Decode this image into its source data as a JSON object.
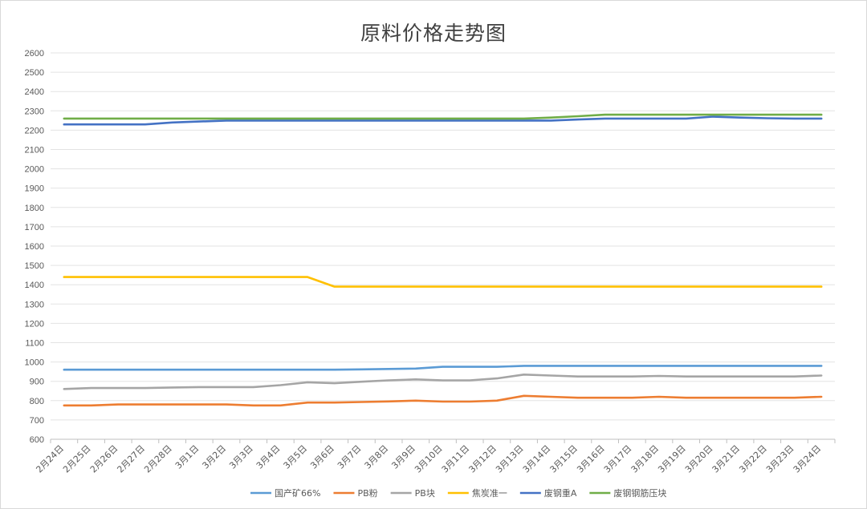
{
  "chart_data": {
    "type": "line",
    "title": "原料价格走势图",
    "xlabel": "",
    "ylabel": "",
    "ylim": [
      600,
      2600
    ],
    "ystep": 100,
    "grid": true,
    "legend_position": "bottom",
    "categories": [
      "2月24日",
      "2月25日",
      "2月26日",
      "2月27日",
      "2月28日",
      "3月1日",
      "3月2日",
      "3月3日",
      "3月4日",
      "3月5日",
      "3月6日",
      "3月7日",
      "3月8日",
      "3月9日",
      "3月10日",
      "3月11日",
      "3月12日",
      "3月13日",
      "3月14日",
      "3月15日",
      "3月16日",
      "3月17日",
      "3月18日",
      "3月19日",
      "3月20日",
      "3月21日",
      "3月22日",
      "3月23日",
      "3月24日"
    ],
    "series": [
      {
        "name": "国产矿66%",
        "color": "#5b9bd5",
        "values": [
          960,
          960,
          960,
          960,
          960,
          960,
          960,
          960,
          960,
          960,
          960,
          962,
          964,
          966,
          975,
          975,
          975,
          980,
          980,
          980,
          980,
          980,
          980,
          980,
          980,
          980,
          980,
          980,
          980
        ]
      },
      {
        "name": "PB粉",
        "color": "#ed7d31",
        "values": [
          775,
          775,
          780,
          780,
          780,
          780,
          780,
          775,
          775,
          790,
          790,
          793,
          796,
          800,
          795,
          795,
          800,
          825,
          820,
          815,
          815,
          815,
          820,
          815,
          815,
          815,
          815,
          815,
          820
        ]
      },
      {
        "name": "PB块",
        "color": "#a5a5a5",
        "values": [
          860,
          865,
          865,
          865,
          868,
          870,
          870,
          870,
          880,
          895,
          890,
          898,
          905,
          910,
          905,
          905,
          915,
          935,
          930,
          925,
          925,
          925,
          928,
          925,
          925,
          925,
          925,
          925,
          930
        ]
      },
      {
        "name": "焦炭准一",
        "color": "#ffc000",
        "values": [
          1440,
          1440,
          1440,
          1440,
          1440,
          1440,
          1440,
          1440,
          1440,
          1440,
          1390,
          1390,
          1390,
          1390,
          1390,
          1390,
          1390,
          1390,
          1390,
          1390,
          1390,
          1390,
          1390,
          1390,
          1390,
          1390,
          1390,
          1390,
          1390
        ]
      },
      {
        "name": "废钢重A",
        "color": "#4472c4",
        "values": [
          2230,
          2230,
          2230,
          2230,
          2240,
          2245,
          2250,
          2250,
          2250,
          2250,
          2250,
          2250,
          2250,
          2250,
          2250,
          2250,
          2250,
          2250,
          2250,
          2255,
          2260,
          2260,
          2260,
          2260,
          2270,
          2265,
          2262,
          2260,
          2260
        ]
      },
      {
        "name": "废钢钢筋压块",
        "color": "#70ad47",
        "values": [
          2260,
          2260,
          2260,
          2260,
          2260,
          2260,
          2260,
          2260,
          2260,
          2260,
          2260,
          2260,
          2260,
          2260,
          2260,
          2260,
          2260,
          2260,
          2265,
          2272,
          2280,
          2280,
          2280,
          2280,
          2280,
          2280,
          2280,
          2280,
          2280
        ]
      }
    ]
  }
}
